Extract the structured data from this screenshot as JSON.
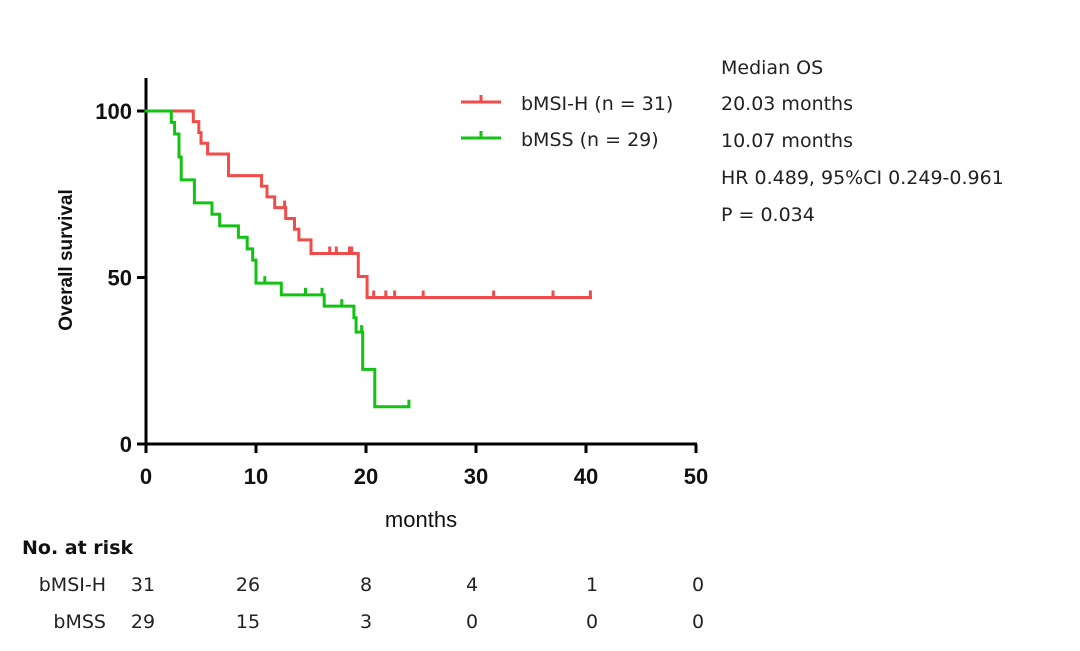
{
  "chart_data": {
    "type": "line",
    "subtype": "kaplan-meier",
    "title": "",
    "xlabel": "months",
    "ylabel": "Overall survival",
    "xlim": [
      0,
      50
    ],
    "ylim": [
      0,
      100
    ],
    "xticks": [
      0,
      10,
      20,
      30,
      40,
      50
    ],
    "yticks": [
      0,
      50,
      100
    ],
    "grid": false,
    "legend_position": "top-right",
    "series": [
      {
        "name": "bMSI-H (n = 31)",
        "color": "#f24b4b",
        "steps": [
          [
            0,
            100
          ],
          [
            4.3,
            96.8
          ],
          [
            4.8,
            93.5
          ],
          [
            5.0,
            90.3
          ],
          [
            5.6,
            87.1
          ],
          [
            7.5,
            80.6
          ],
          [
            10.5,
            77.4
          ],
          [
            11.0,
            74.2
          ],
          [
            11.7,
            71.0
          ],
          [
            12.7,
            67.7
          ],
          [
            13.5,
            64.5
          ],
          [
            13.9,
            61.3
          ],
          [
            15.0,
            57.2
          ],
          [
            19.3,
            50.3
          ],
          [
            20.1,
            44.0
          ]
        ],
        "end_x": 40.4,
        "censored": [
          12.6,
          16.7,
          17.3,
          18.5,
          18.7,
          20.7,
          21.8,
          22.6,
          25.2,
          31.6,
          37.0,
          40.4
        ]
      },
      {
        "name": "bMSS (n = 29)",
        "color": "#14c214",
        "steps": [
          [
            0,
            100
          ],
          [
            2.3,
            96.6
          ],
          [
            2.6,
            93.1
          ],
          [
            3.0,
            86.2
          ],
          [
            3.2,
            79.3
          ],
          [
            4.4,
            72.4
          ],
          [
            6.0,
            69.0
          ],
          [
            6.7,
            65.5
          ],
          [
            8.4,
            62.1
          ],
          [
            9.2,
            58.6
          ],
          [
            9.7,
            55.2
          ],
          [
            10.0,
            48.3
          ],
          [
            12.3,
            44.8
          ],
          [
            16.2,
            41.4
          ],
          [
            18.9,
            37.9
          ],
          [
            19.1,
            33.6
          ],
          [
            19.7,
            22.4
          ],
          [
            20.8,
            11.2
          ]
        ],
        "end_x": 23.9,
        "censored": [
          10.8,
          14.5,
          16.0,
          17.8,
          19.6,
          23.9
        ]
      }
    ],
    "annotations": {
      "median_header": "Median OS",
      "median_msi": "20.03 months",
      "median_mss": "10.07 months",
      "hr": "HR 0.489, 95%CI 0.249-0.961",
      "p": "P = 0.034"
    },
    "risk_table": {
      "title": "No. at risk",
      "timepoints": [
        0,
        10,
        20,
        30,
        40,
        50
      ],
      "rows": [
        {
          "label": "bMSI-H",
          "values": [
            "31",
            "26",
            "8",
            "4",
            "1",
            "0"
          ]
        },
        {
          "label": "bMSS",
          "values": [
            "29",
            "15",
            "3",
            "0",
            "0",
            "0"
          ]
        }
      ]
    }
  }
}
